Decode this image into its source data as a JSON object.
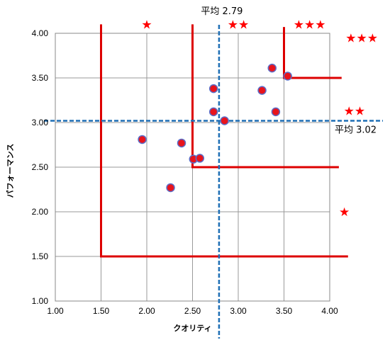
{
  "chart_data": {
    "type": "scatter",
    "title": "",
    "xlabel": "クオリティ",
    "ylabel": "パフォーマンス",
    "xlim": [
      1.0,
      4.0
    ],
    "ylim": [
      1.0,
      4.0
    ],
    "x_ticks": [
      "1.00",
      "1.50",
      "2.00",
      "2.50",
      "3.00",
      "3.50",
      "4.00"
    ],
    "y_ticks": [
      "1.00",
      "1.50",
      "2.00",
      "2.50",
      "3.00",
      "3.50",
      "4.00"
    ],
    "grid": true,
    "marker_color": "#e8141c",
    "marker_edge_color": "#5b6ec9",
    "points": [
      {
        "x": 1.95,
        "y": 2.81
      },
      {
        "x": 2.26,
        "y": 2.27
      },
      {
        "x": 2.38,
        "y": 2.77
      },
      {
        "x": 2.51,
        "y": 2.59
      },
      {
        "x": 2.58,
        "y": 2.6
      },
      {
        "x": 2.73,
        "y": 3.38
      },
      {
        "x": 2.73,
        "y": 3.12
      },
      {
        "x": 2.85,
        "y": 3.02
      },
      {
        "x": 3.26,
        "y": 3.36
      },
      {
        "x": 3.37,
        "y": 3.61
      },
      {
        "x": 3.41,
        "y": 3.12
      },
      {
        "x": 3.54,
        "y": 3.52
      }
    ],
    "avg_x": {
      "value": 2.79,
      "label": "平均 2.79",
      "color": "#1f6fb5"
    },
    "avg_y": {
      "value": 3.02,
      "label": "平均 3.02",
      "color": "#1f6fb5"
    },
    "boundary_color": "#dd0000",
    "boundaries": [
      {
        "points": [
          [
            1.5,
            4.1
          ],
          [
            1.5,
            1.5
          ],
          [
            4.2,
            1.5
          ]
        ]
      },
      {
        "points": [
          [
            2.5,
            4.1
          ],
          [
            2.5,
            2.5
          ],
          [
            4.1,
            2.5
          ]
        ]
      },
      {
        "points": [
          [
            3.5,
            4.07
          ],
          [
            3.5,
            3.5
          ],
          [
            4.13,
            3.5
          ]
        ]
      }
    ],
    "star_color": "#ff0000",
    "star_annotations": [
      {
        "text": "★",
        "x": 2.0,
        "y": 4.1
      },
      {
        "text": "★★",
        "x": 3.0,
        "y": 4.1
      },
      {
        "text": "★★★",
        "x": 3.78,
        "y": 4.1
      },
      {
        "text": "★★★",
        "x": 4.35,
        "y": 3.95
      },
      {
        "text": "★★",
        "x": 4.27,
        "y": 3.13
      },
      {
        "text": "★",
        "x": 4.16,
        "y": 2.0
      }
    ]
  }
}
